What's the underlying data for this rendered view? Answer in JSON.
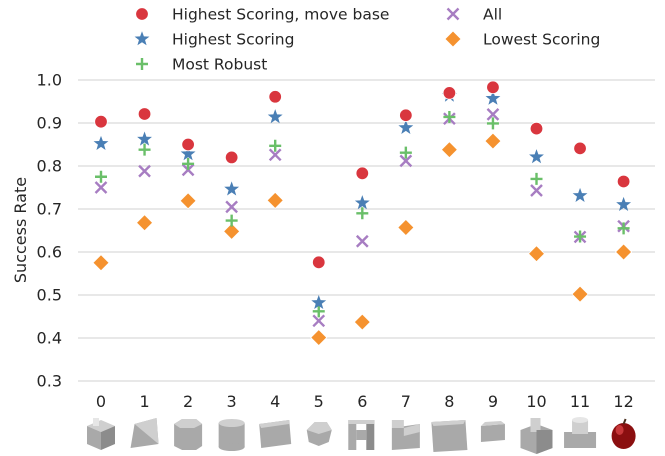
{
  "chart_data": {
    "type": "scatter",
    "ylabel": "Success Rate",
    "xlabel": "",
    "categories": [
      "0",
      "1",
      "2",
      "3",
      "4",
      "5",
      "6",
      "7",
      "8",
      "9",
      "10",
      "11",
      "12"
    ],
    "ylim": [
      0.3,
      1.0
    ],
    "yticks": [
      "0.3",
      "0.4",
      "0.5",
      "0.6",
      "0.7",
      "0.8",
      "0.9",
      "1.0"
    ],
    "grid": "horizontal",
    "legend_position": "top",
    "series": [
      {
        "name": "Highest Scoring, move base",
        "marker": "circle",
        "color": "#d9363e",
        "values": [
          0.903,
          0.921,
          0.85,
          0.82,
          0.961,
          0.576,
          0.783,
          0.918,
          0.97,
          0.983,
          0.887,
          0.841,
          0.764
        ]
      },
      {
        "name": "Highest Scoring",
        "marker": "star",
        "color": "#4a7fb5",
        "values": [
          0.852,
          0.862,
          0.828,
          0.746,
          0.914,
          0.482,
          0.714,
          0.889,
          0.964,
          0.957,
          0.821,
          0.731,
          0.71
        ]
      },
      {
        "name": "Most Robust",
        "marker": "plus",
        "color": "#6abf69",
        "values": [
          0.775,
          0.838,
          0.805,
          0.673,
          0.847,
          0.462,
          0.69,
          0.831,
          0.914,
          0.899,
          0.77,
          0.636,
          0.655
        ]
      },
      {
        "name": "All",
        "marker": "x",
        "color": "#a77dc2",
        "values": [
          0.75,
          0.788,
          0.791,
          0.705,
          0.826,
          0.44,
          0.625,
          0.812,
          0.91,
          0.92,
          0.743,
          0.635,
          0.66
        ]
      },
      {
        "name": "Lowest Scoring",
        "marker": "diamond",
        "color": "#f5922f",
        "values": [
          0.575,
          0.668,
          0.719,
          0.648,
          0.72,
          0.401,
          0.437,
          0.657,
          0.838,
          0.858,
          0.596,
          0.502,
          0.6
        ]
      }
    ],
    "object_icons": [
      "cube-notch-icon",
      "wedge-block-icon",
      "octagonal-prism-icon",
      "cylinder-icon",
      "flat-box-icon",
      "rounded-gem-icon",
      "h-shape-block-icon",
      "step-block-icon",
      "large-cube-icon",
      "small-box-icon",
      "stepped-cube-icon",
      "cylinder-on-box-icon",
      "apple-icon"
    ]
  }
}
